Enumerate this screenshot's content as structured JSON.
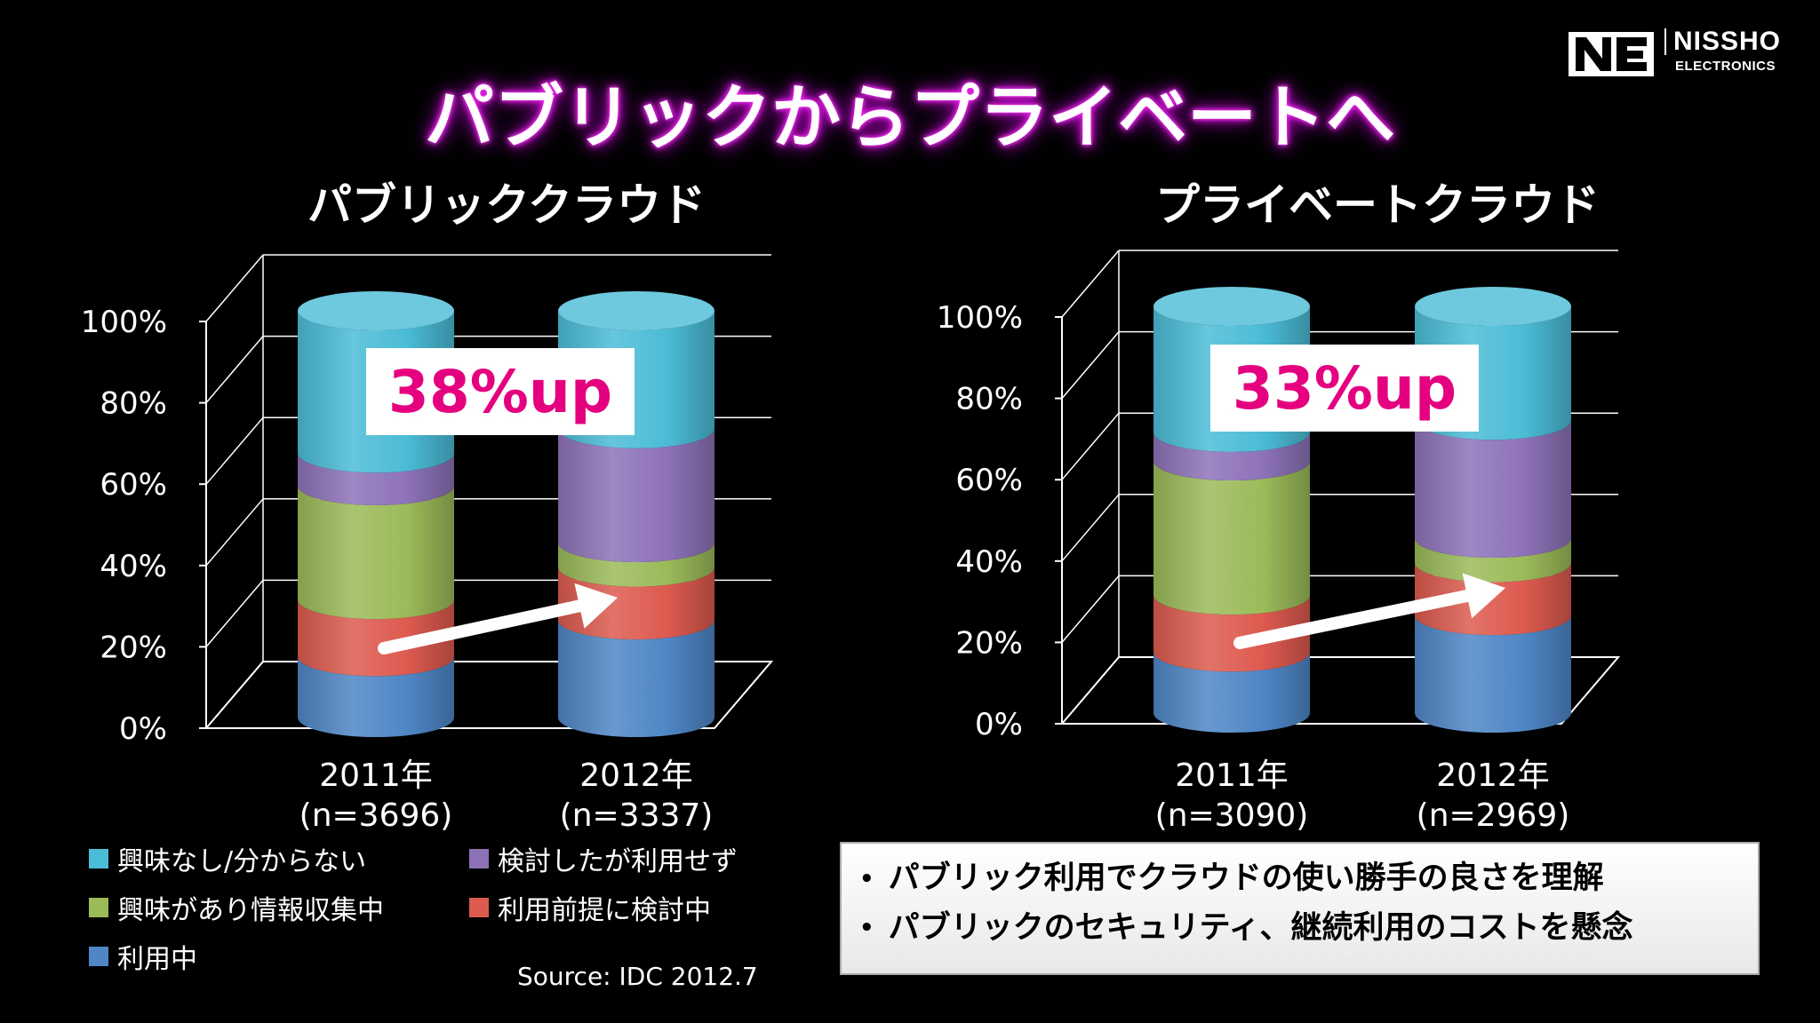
{
  "page": {
    "title": "パブリックからプライベートへ",
    "logo": {
      "name": "NISSHO",
      "sub": "ELECTRONICS",
      "mark": "NE"
    },
    "source": "Source: IDC 2012.7",
    "notes": [
      "パブリック利用でクラウドの使い勝手の良さを理解",
      "パブリックのセキュリティ、継続利用のコストを懸念"
    ]
  },
  "legend": [
    {
      "label": "興味なし/分からない",
      "color": "#4bbcd6"
    },
    {
      "label": "検討したが利用せず",
      "color": "#8d72b8"
    },
    {
      "label": "興味があり情報収集中",
      "color": "#9bbb59"
    },
    {
      "label": "利用前提に検討中",
      "color": "#dd5a4f"
    },
    {
      "label": "利用中",
      "color": "#4f86c6"
    }
  ],
  "chart_data": [
    {
      "type": "bar",
      "stacked": true,
      "title": "パブリッククラウド",
      "ylim": [
        0,
        100
      ],
      "yticks": [
        "0%",
        "20%",
        "40%",
        "60%",
        "80%",
        "100%"
      ],
      "categories": [
        "2011年",
        "2012年"
      ],
      "category_notes": [
        "(n=3696)",
        "(n=3337)"
      ],
      "series": [
        {
          "name": "利用中",
          "color": "#4f86c6",
          "values": [
            15,
            24
          ]
        },
        {
          "name": "利用前提に検討中",
          "color": "#dd5a4f",
          "values": [
            14,
            13
          ]
        },
        {
          "name": "興味があり情報収集中",
          "color": "#9bbb59",
          "values": [
            28,
            6
          ]
        },
        {
          "name": "検討したが利用せず",
          "color": "#8d72b8",
          "values": [
            8,
            28
          ]
        },
        {
          "name": "興味なし/分からない",
          "color": "#4bbcd6",
          "values": [
            35,
            29
          ]
        }
      ],
      "annotation": "38%up"
    },
    {
      "type": "bar",
      "stacked": true,
      "title": "プライベートクラウド",
      "ylim": [
        0,
        100
      ],
      "yticks": [
        "0%",
        "20%",
        "40%",
        "60%",
        "80%",
        "100%"
      ],
      "categories": [
        "2011年",
        "2012年"
      ],
      "category_notes": [
        "(n=3090)",
        "(n=2969)"
      ],
      "series": [
        {
          "name": "利用中",
          "color": "#4f86c6",
          "values": [
            15,
            24
          ]
        },
        {
          "name": "利用前提に検討中",
          "color": "#dd5a4f",
          "values": [
            14,
            13
          ]
        },
        {
          "name": "興味があり情報収集中",
          "color": "#9bbb59",
          "values": [
            33,
            6
          ]
        },
        {
          "name": "検討したが利用せず",
          "color": "#8d72b8",
          "values": [
            7,
            29
          ]
        },
        {
          "name": "興味なし/分からない",
          "color": "#4bbcd6",
          "values": [
            31,
            28
          ]
        }
      ],
      "annotation": "33%up"
    }
  ]
}
